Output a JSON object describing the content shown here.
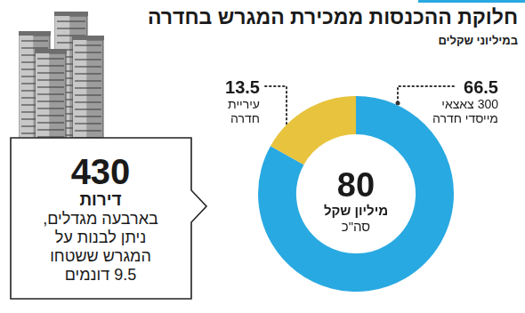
{
  "chart_data": {
    "type": "doughnut",
    "title": "חלוקת ההכנסות ממכירת המגרש בחדרה",
    "subtitle": "במיליוני שקלים",
    "categories": [
      "300 צאצאי מייסדי חדרה",
      "עיריית חדרה"
    ],
    "values": [
      66.5,
      13.5
    ],
    "colors": [
      "#29a9e1",
      "#e8c33e"
    ],
    "data_labels": true,
    "total": {
      "value": 80,
      "label": "מיליון שקל",
      "text": "סה\"כ"
    }
  },
  "callout": {
    "value": 430,
    "label": "דירות",
    "lines": [
      "בארבעה מגדלים,",
      "ניתן לבנות על",
      "המגרש ששטחו",
      "9.5 דונמים"
    ]
  }
}
